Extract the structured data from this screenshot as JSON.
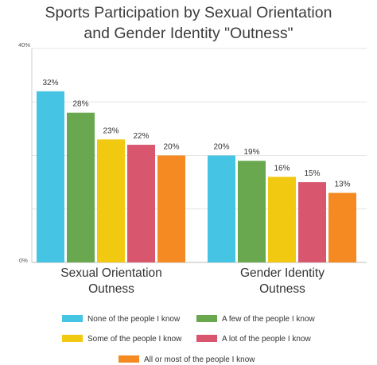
{
  "chart_data": {
    "type": "bar",
    "title_lines": [
      "Sports Participation by Sexual Orientation",
      "and Gender Identity \"Outness\""
    ],
    "ytick_labels": [
      "40%",
      "0%"
    ],
    "ylim": [
      0,
      40
    ],
    "grid": true,
    "legend_position": "bottom",
    "categories": [
      {
        "lines": [
          "Sexual Orientation",
          "Outness"
        ]
      },
      {
        "lines": [
          "Gender Identity",
          "Outness"
        ]
      }
    ],
    "series": [
      {
        "name": "None of the people I know",
        "color": "#45c4e3",
        "values": [
          32,
          20
        ],
        "labels": [
          "32%",
          "20%"
        ]
      },
      {
        "name": "A few of the people I know",
        "color": "#6aa84f",
        "values": [
          28,
          19
        ],
        "labels": [
          "28%",
          "19%"
        ]
      },
      {
        "name": "Some of the people I know",
        "color": "#f1c910",
        "values": [
          23,
          16
        ],
        "labels": [
          "23%",
          "16%"
        ]
      },
      {
        "name": "A lot of the people I know",
        "color": "#d9566f",
        "values": [
          22,
          15
        ],
        "labels": [
          "22%",
          "15%"
        ]
      },
      {
        "name": "All or most of the people I know",
        "color": "#f48a21",
        "values": [
          20,
          13
        ],
        "labels": [
          "20%",
          "13%"
        ]
      }
    ]
  }
}
